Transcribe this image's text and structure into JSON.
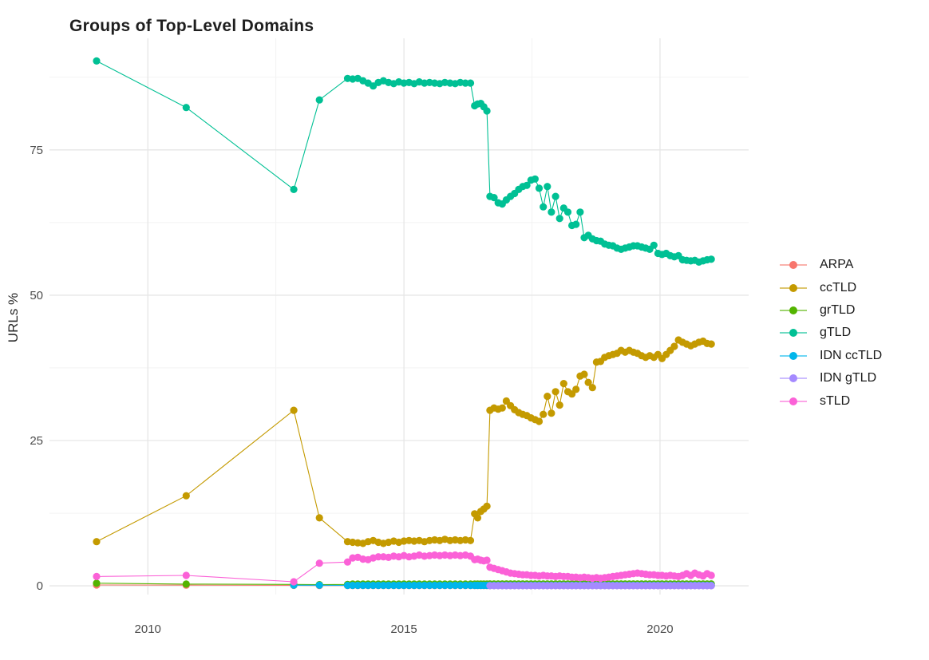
{
  "chart_data": {
    "type": "line",
    "title": "Groups of Top-Level Domains",
    "xlabel": "",
    "ylabel": "URLs %",
    "grid": true,
    "legend_position": "right",
    "x_ticks": [
      2010,
      2015,
      2020
    ],
    "x_minor_ticks": [
      2012.5,
      2017.5
    ],
    "y_ticks": [
      0,
      25,
      50,
      75
    ],
    "y_minor_ticks": [
      12.5,
      37.5,
      62.5,
      87.5
    ],
    "xlim": [
      2008.08,
      2021.73
    ],
    "ylim": [
      -1.5,
      94.2
    ],
    "colors": {
      "major_grid": "#e6e6e6",
      "minor_grid": "#f2f2f2",
      "axis_text": "#4d4d4d",
      "title_text": "#1f1f1f"
    },
    "series": [
      {
        "name": "ARPA",
        "color": "#F8766D",
        "segments": [
          {
            "pts": [
              [
                2009.0,
                0.15
              ],
              [
                2010.75,
                0.12
              ],
              [
                2012.85,
                0.08
              ],
              [
                2013.35,
                0.05
              ],
              [
                2013.9,
                0.05
              ]
            ]
          },
          {
            "x0": 2014.0,
            "dx": 0.1,
            "n": 24,
            "const": 0.05
          },
          {
            "x0": 2016.38,
            "dx": 0.06,
            "n": 5,
            "const": 0.05
          },
          {
            "x0": 2016.68,
            "dx": 0.08,
            "n": 55,
            "const": 0.04
          }
        ]
      },
      {
        "name": "ccTLD",
        "color": "#C49A00",
        "segments": [
          {
            "pts": [
              [
                2009.0,
                7.6
              ],
              [
                2010.75,
                15.5
              ],
              [
                2012.85,
                30.2
              ],
              [
                2013.35,
                11.7
              ],
              [
                2013.9,
                7.6
              ]
            ]
          },
          {
            "x0": 2014.0,
            "dx": 0.1,
            "y": [
              7.5,
              7.4,
              7.3,
              7.6,
              7.8,
              7.5,
              7.3,
              7.5,
              7.7,
              7.5,
              7.7,
              7.8,
              7.7,
              7.8,
              7.6,
              7.8,
              7.9,
              7.8,
              8.0,
              7.8,
              7.9,
              7.8,
              7.9,
              7.8
            ]
          },
          {
            "x0": 2016.38,
            "dx": 0.06,
            "y": [
              12.4,
              11.7,
              12.8,
              13.2,
              13.7
            ]
          },
          {
            "x0": 2016.68,
            "dx": 0.08,
            "y": [
              30.2,
              30.6,
              30.4,
              30.6,
              31.8,
              31.0,
              30.3,
              29.8,
              29.5,
              29.3,
              28.9,
              28.6,
              28.3,
              29.5,
              32.6,
              29.7,
              33.4,
              31.1,
              34.8,
              33.4,
              33.0,
              33.8,
              36.1,
              36.4,
              35.0,
              34.1,
              38.5,
              38.6,
              39.3,
              39.6,
              39.8,
              40.0,
              40.5,
              40.2,
              40.5,
              40.2,
              40.0,
              39.6,
              39.3,
              39.6,
              39.3,
              39.8,
              39.1,
              39.8,
              40.5,
              41.2,
              42.3,
              41.9,
              41.6,
              41.3,
              41.6,
              41.9,
              42.1,
              41.7,
              41.6
            ]
          }
        ]
      },
      {
        "name": "grTLD",
        "color": "#53B400",
        "segments": [
          {
            "pts": [
              [
                2009.0,
                0.45
              ],
              [
                2010.75,
                0.3
              ],
              [
                2012.85,
                0.25
              ],
              [
                2013.35,
                0.2
              ],
              [
                2013.9,
                0.25
              ]
            ]
          },
          {
            "x0": 2014.0,
            "dx": 0.1,
            "n": 24,
            "const": 0.3
          },
          {
            "x0": 2016.38,
            "dx": 0.06,
            "n": 5,
            "const": 0.3
          },
          {
            "x0": 2016.68,
            "dx": 0.08,
            "n": 55,
            "const": 0.32
          }
        ]
      },
      {
        "name": "gTLD",
        "color": "#00C094",
        "segments": [
          {
            "pts": [
              [
                2009.0,
                90.3
              ],
              [
                2010.75,
                82.3
              ],
              [
                2012.85,
                68.2
              ],
              [
                2013.35,
                83.6
              ],
              [
                2013.9,
                87.3
              ]
            ]
          },
          {
            "x0": 2014.0,
            "dx": 0.1,
            "y": [
              87.2,
              87.3,
              86.9,
              86.5,
              86.0,
              86.6,
              86.9,
              86.6,
              86.4,
              86.7,
              86.5,
              86.6,
              86.4,
              86.7,
              86.5,
              86.6,
              86.5,
              86.4,
              86.6,
              86.5,
              86.4,
              86.6,
              86.5,
              86.5
            ]
          },
          {
            "x0": 2016.38,
            "dx": 0.06,
            "y": [
              82.6,
              82.9,
              83.0,
              82.4,
              81.7
            ]
          },
          {
            "x0": 2016.68,
            "dx": 0.08,
            "y": [
              67.0,
              66.8,
              65.9,
              65.7,
              66.4,
              67.0,
              67.5,
              68.2,
              68.7,
              68.9,
              69.8,
              70.0,
              68.4,
              65.2,
              68.7,
              64.3,
              67.0,
              63.2,
              65.0,
              64.3,
              62.0,
              62.2,
              64.3,
              59.9,
              60.3,
              59.7,
              59.4,
              59.3,
              58.8,
              58.6,
              58.5,
              58.1,
              57.9,
              58.1,
              58.3,
              58.5,
              58.5,
              58.3,
              58.1,
              57.9,
              58.6,
              57.2,
              57.0,
              57.2,
              56.8,
              56.6,
              56.8,
              56.1,
              56.0,
              55.9,
              56.0,
              55.7,
              55.9,
              56.1,
              56.2
            ]
          }
        ]
      },
      {
        "name": "IDN ccTLD",
        "color": "#00B6EB",
        "segments": [
          {
            "pts": [
              [
                2012.85,
                0.1
              ],
              [
                2013.35,
                0.1
              ],
              [
                2013.9,
                0.08
              ]
            ]
          },
          {
            "x0": 2014.0,
            "dx": 0.1,
            "n": 24,
            "const": 0.08
          },
          {
            "x0": 2016.38,
            "dx": 0.06,
            "n": 5,
            "const": 0.08
          },
          {
            "x0": 2016.68,
            "dx": 0.08,
            "n": 55,
            "const": 0.08
          }
        ]
      },
      {
        "name": "IDN gTLD",
        "color": "#A58AFF",
        "segments": [
          {
            "x0": 2016.68,
            "dx": 0.08,
            "n": 55,
            "const": 0.02
          }
        ]
      },
      {
        "name": "sTLD",
        "color": "#FB61D7",
        "segments": [
          {
            "pts": [
              [
                2009.0,
                1.6
              ],
              [
                2010.75,
                1.8
              ],
              [
                2012.85,
                0.7
              ],
              [
                2013.35,
                3.9
              ],
              [
                2013.9,
                4.1
              ]
            ]
          },
          {
            "x0": 2014.0,
            "dx": 0.1,
            "y": [
              4.8,
              4.9,
              4.6,
              4.5,
              4.8,
              5.0,
              5.0,
              4.9,
              5.1,
              5.0,
              5.2,
              5.0,
              5.1,
              5.3,
              5.1,
              5.2,
              5.3,
              5.2,
              5.3,
              5.2,
              5.3,
              5.2,
              5.3,
              5.1
            ]
          },
          {
            "x0": 2016.38,
            "dx": 0.06,
            "y": [
              4.5,
              4.6,
              4.4,
              4.3,
              4.4
            ]
          },
          {
            "x0": 2016.68,
            "dx": 0.08,
            "y": [
              3.2,
              3.0,
              2.8,
              2.6,
              2.4,
              2.2,
              2.1,
              2.0,
              1.9,
              1.9,
              1.8,
              1.8,
              1.7,
              1.8,
              1.7,
              1.7,
              1.6,
              1.7,
              1.6,
              1.6,
              1.5,
              1.5,
              1.4,
              1.5,
              1.4,
              1.3,
              1.4,
              1.3,
              1.4,
              1.5,
              1.6,
              1.7,
              1.8,
              1.9,
              2.0,
              2.1,
              2.2,
              2.1,
              2.0,
              1.9,
              1.9,
              1.8,
              1.8,
              1.7,
              1.8,
              1.7,
              1.6,
              1.8,
              2.1,
              1.8,
              2.2,
              1.9,
              1.7,
              2.1,
              1.8
            ]
          }
        ]
      }
    ]
  }
}
